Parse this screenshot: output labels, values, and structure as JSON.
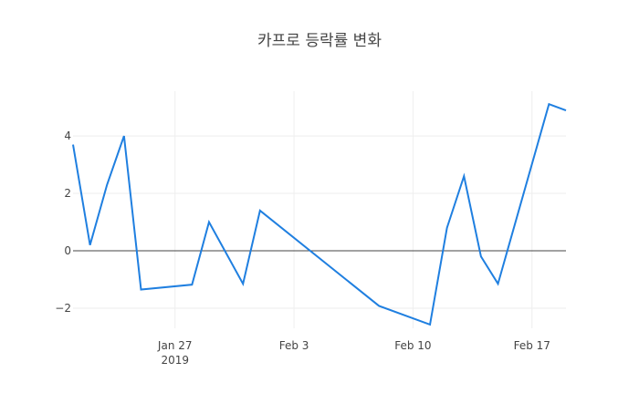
{
  "chart_data": {
    "type": "line",
    "title": "카프로 등락률 변화",
    "x": [
      "2019-01-21",
      "2019-01-22",
      "2019-01-23",
      "2019-01-24",
      "2019-01-25",
      "2019-01-28",
      "2019-01-29",
      "2019-01-31",
      "2019-02-01",
      "2019-02-08",
      "2019-02-11",
      "2019-02-12",
      "2019-02-13",
      "2019-02-14",
      "2019-02-15",
      "2019-02-18",
      "2019-02-19"
    ],
    "series": [
      {
        "color": "#1f7fe0",
        "values": [
          3.7,
          0.2,
          2.3,
          4.0,
          -1.35,
          -1.18,
          1.0,
          -1.15,
          1.4,
          -1.92,
          -2.57,
          0.8,
          2.6,
          -0.2,
          -1.15,
          5.11,
          4.89
        ]
      }
    ],
    "xlim": [
      "2019-01-21",
      "2019-02-19"
    ],
    "xticks": [
      {
        "value": "2019-01-27",
        "label": "Jan 27\n2019"
      },
      {
        "value": "2019-02-03",
        "label": "Feb 3"
      },
      {
        "value": "2019-02-10",
        "label": "Feb 10"
      },
      {
        "value": "2019-02-17",
        "label": "Feb 17"
      }
    ],
    "ylim": [
      -2.7,
      5.56
    ],
    "yticks": [
      {
        "value": -2,
        "label": "−2"
      },
      0,
      2,
      4
    ],
    "grid": true
  }
}
